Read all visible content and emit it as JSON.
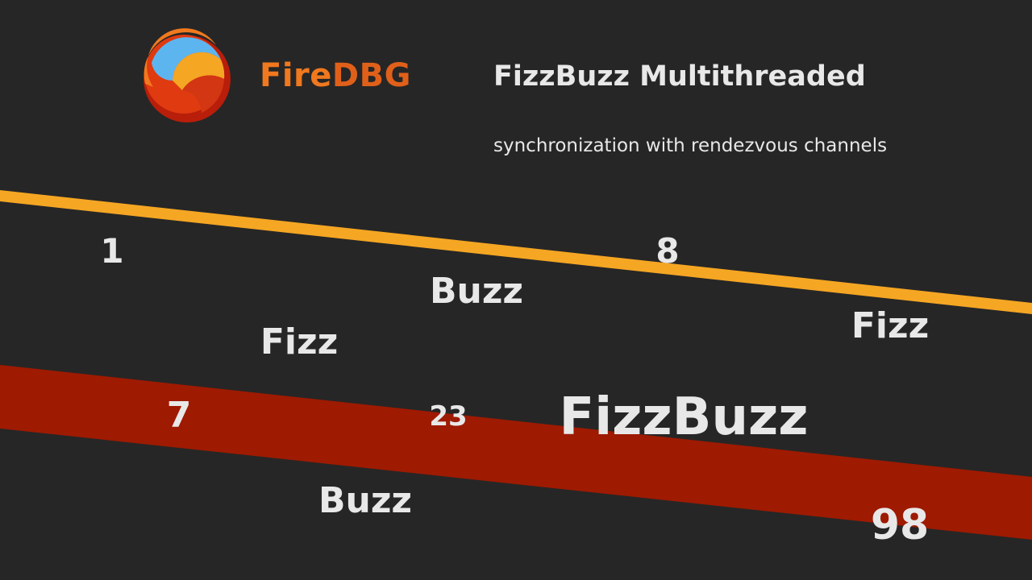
{
  "brand": {
    "name_part1": "Fire",
    "name_part2": "DBG",
    "logo_icon": "firedbg-logo-icon"
  },
  "title": "FizzBuzz Multithreaded",
  "subtitle": "synchronization with rendezvous channels",
  "words": [
    "1",
    "8",
    "Buzz",
    "Fizz",
    "Fizz",
    "7",
    "23",
    "FizzBuzz",
    "Buzz",
    "98"
  ],
  "colors": {
    "background": "#262626",
    "orange_stripe": "#f5a623",
    "red_band": "#9e1a00",
    "brand_orange": "#f0781e",
    "text": "#e8e8e8"
  }
}
